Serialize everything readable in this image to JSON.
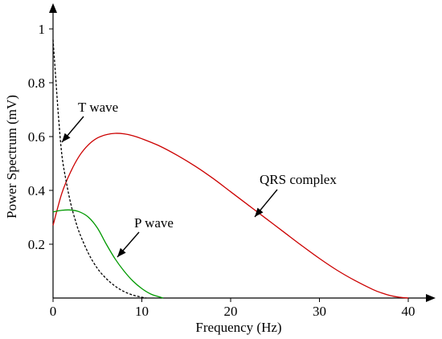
{
  "chart_data": {
    "type": "line",
    "xlabel": "Frequency (Hz)",
    "ylabel": "Power Spectrum (mV)",
    "xlim": [
      0,
      42
    ],
    "ylim": [
      0,
      1.05
    ],
    "xticks": [
      0,
      10,
      20,
      30,
      40
    ],
    "yticks": [
      0.2,
      0.4,
      0.6,
      0.8,
      1
    ],
    "grid": false,
    "series": [
      {
        "name": "QRS complex",
        "color": "#cc0000",
        "dash": "solid",
        "x": [
          0,
          1,
          2,
          3,
          4,
          5,
          6,
          7,
          8,
          9,
          10,
          12,
          14,
          16,
          18,
          20,
          22,
          24,
          26,
          28,
          30,
          32,
          34,
          36,
          37,
          38,
          39,
          40
        ],
        "y": [
          0.27,
          0.39,
          0.47,
          0.53,
          0.57,
          0.595,
          0.607,
          0.612,
          0.61,
          0.603,
          0.592,
          0.565,
          0.53,
          0.49,
          0.445,
          0.395,
          0.345,
          0.295,
          0.245,
          0.195,
          0.147,
          0.103,
          0.065,
          0.032,
          0.019,
          0.009,
          0.003,
          0.0
        ]
      },
      {
        "name": "P wave",
        "color": "#009900",
        "dash": "solid",
        "x": [
          0,
          1,
          2,
          3,
          4,
          5,
          6,
          7,
          8,
          9,
          10,
          11,
          12,
          12.4
        ],
        "y": [
          0.32,
          0.326,
          0.327,
          0.32,
          0.3,
          0.26,
          0.2,
          0.145,
          0.1,
          0.063,
          0.035,
          0.015,
          0.004,
          0.0
        ]
      },
      {
        "name": "T wave",
        "color": "#000000",
        "dash": "dashed",
        "x": [
          0,
          0.3,
          0.6,
          1,
          1.5,
          2,
          2.5,
          3,
          4,
          5,
          6,
          7,
          8,
          9,
          10,
          10.5
        ],
        "y": [
          0.96,
          0.82,
          0.68,
          0.53,
          0.43,
          0.35,
          0.29,
          0.24,
          0.165,
          0.11,
          0.072,
          0.044,
          0.024,
          0.011,
          0.003,
          0.0
        ]
      }
    ],
    "annotations": [
      {
        "text": "T wave",
        "target": [
          0.9,
          0.58
        ]
      },
      {
        "text": "P wave",
        "target": [
          7.0,
          0.15
        ]
      },
      {
        "text": "QRS complex",
        "target": [
          22.5,
          0.32
        ]
      }
    ]
  }
}
